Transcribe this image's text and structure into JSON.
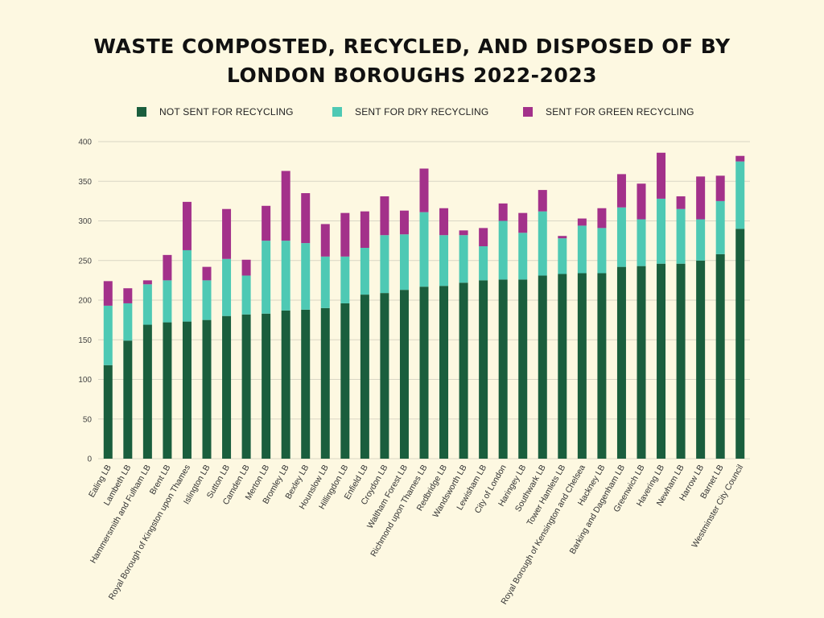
{
  "title_line1": "WASTE COMPOSTED, RECYCLED, AND DISPOSED OF BY",
  "title_line2": "LONDON BOROUGHS 2022-2023",
  "colors": {
    "not_sent": "#1a5e3d",
    "dry": "#4ec9b4",
    "green": "#a3318a",
    "grid": "#d9d6c4"
  },
  "chart_data": {
    "type": "bar",
    "stacked": true,
    "title": "WASTE COMPOSTED, RECYCLED, AND DISPOSED OF BY LONDON BOROUGHS 2022-2023",
    "xlabel": "",
    "ylabel": "",
    "ylim": [
      0,
      400
    ],
    "yticks": [
      0,
      50,
      100,
      150,
      200,
      250,
      300,
      350,
      400
    ],
    "legend_position": "top",
    "grid": true,
    "categories": [
      "Ealing LB",
      "Lambeth LB",
      "Hammersmith and Fulham LB",
      "Brent LB",
      "Royal Borough of Kingston upon Thames",
      "Islington LB",
      "Sutton LB",
      "Camden LB",
      "Merton LB",
      "Bromley LB",
      "Bexley LB",
      "Hounslow LB",
      "Hillingdon LB",
      "Enfield LB",
      "Croydon LB",
      "Waltham Forest LB",
      "Richmond upon Thames LB",
      "Redbridge LB",
      "Wandsworth LB",
      "Lewisham LB",
      "City of London",
      "Haringey LB",
      "Southwark LB",
      "Tower Hamlets LB",
      "Royal Borough of Kensington and Chelsea",
      "Hackney LB",
      "Barking and Dagenham LB",
      "Greenwich LB",
      "Havering LB",
      "Newham LB",
      "Harrow LB",
      "Barnet LB",
      "Westminster City Council"
    ],
    "series": [
      {
        "name": "NOT SENT FOR RECYCLING",
        "color_key": "not_sent",
        "values": [
          118,
          149,
          169,
          172,
          173,
          175,
          180,
          182,
          183,
          187,
          188,
          190,
          196,
          207,
          209,
          213,
          217,
          218,
          222,
          225,
          226,
          226,
          231,
          233,
          234,
          234,
          242,
          243,
          246,
          246,
          250,
          258,
          290
        ]
      },
      {
        "name": "SENT FOR DRY RECYCLING",
        "color_key": "dry",
        "values": [
          75,
          47,
          51,
          53,
          90,
          50,
          72,
          49,
          92,
          88,
          84,
          65,
          59,
          59,
          73,
          70,
          94,
          64,
          60,
          43,
          74,
          59,
          81,
          45,
          60,
          57,
          75,
          59,
          82,
          69,
          52,
          67,
          85
        ]
      },
      {
        "name": "SENT FOR GREEN RECYCLING",
        "color_key": "green",
        "values": [
          31,
          19,
          5,
          32,
          61,
          17,
          63,
          20,
          44,
          88,
          63,
          41,
          55,
          46,
          49,
          30,
          55,
          34,
          6,
          23,
          22,
          25,
          27,
          3,
          9,
          25,
          42,
          45,
          58,
          16,
          54,
          32,
          7
        ]
      }
    ]
  }
}
